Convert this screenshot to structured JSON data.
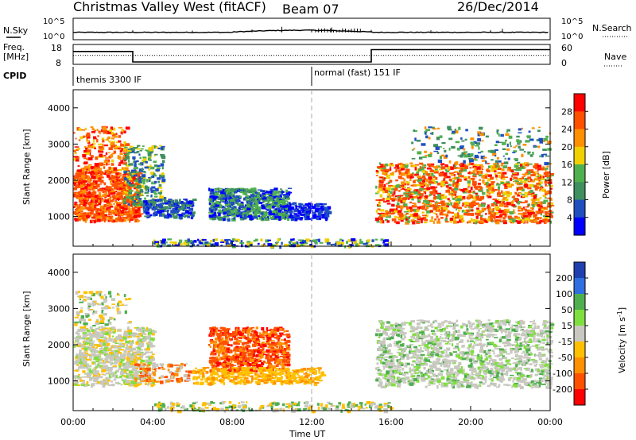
{
  "header": {
    "title": "Christmas Valley West (fitACF)",
    "beam": "Beam 07",
    "date": "26/Dec/2014"
  },
  "top_panels": {
    "nsky_label": "N.Sky",
    "nsky_tick_top": "10^5",
    "nsky_tick_bottom": "10^0",
    "nsearch_label": "N.Search",
    "freq_label_1": "Freq.",
    "freq_label_2": "[MHz]",
    "freq_tick_top": "18",
    "freq_tick_bottom": "8",
    "nave_label": "Nave",
    "nave_tick_top": "60",
    "nave_tick_bottom": "0",
    "cpid_label": "CPID",
    "cpid_1": "themis 3300 IF",
    "cpid_2": "normal (fast) 151 IF"
  },
  "colors": {
    "power": [
      "#0000ff",
      "#1f4fbf",
      "#3f8f5f",
      "#4fb04f",
      "#f0d000",
      "#ff9000",
      "#ff5000",
      "#ff0000"
    ],
    "velocity": [
      "#2040b0",
      "#2f6fe0",
      "#4faf4f",
      "#7fdf3f",
      "#c8c8c0",
      "#ffc000",
      "#ff9000",
      "#ff5000",
      "#ff0000"
    ]
  },
  "chart_data": [
    {
      "type": "line",
      "name": "N.Sky / N.Search",
      "x_unit": "hours UT",
      "x": [
        0,
        3,
        6,
        9,
        10.5,
        12,
        13,
        14,
        15,
        18,
        21,
        21.6,
        24
      ],
      "y": [
        1.2,
        1.2,
        1.1,
        1.4,
        2.2,
        1.5,
        2.0,
        1.6,
        1.3,
        1.2,
        1.2,
        1.6,
        1.2
      ],
      "y_ticks": [
        "10^0",
        "10^5"
      ]
    },
    {
      "type": "line",
      "name": "Frequency / Nave",
      "x_unit": "hours UT",
      "freq_x": [
        0,
        3,
        3,
        15,
        15,
        24
      ],
      "freq_y": [
        14.5,
        14.5,
        9.2,
        9.2,
        15.4,
        15.4
      ],
      "freq_ylim": [
        8,
        18
      ],
      "nave_ylim": [
        0,
        60
      ]
    },
    {
      "type": "heatmap",
      "title": "Power",
      "ylabel": "Slant Range [km]",
      "colorbar_label": "Power [dB]",
      "colorbar_ticks": [
        4,
        8,
        12,
        16,
        20,
        24,
        28
      ],
      "y_ticks": [
        1000,
        2000,
        3000,
        4000
      ],
      "ylim": [
        180,
        4500
      ]
    },
    {
      "type": "heatmap",
      "title": "Velocity",
      "ylabel": "Slant Range [km]",
      "colorbar_label": "Velocity [m s^-1]",
      "colorbar_ticks": [
        200,
        100,
        50,
        15,
        -15,
        -50,
        -100,
        -200
      ],
      "y_ticks": [
        1000,
        2000,
        3000,
        4000
      ],
      "ylim": [
        180,
        4500
      ]
    }
  ],
  "x_axis": {
    "label": "Time UT",
    "ticks": [
      "00:00",
      "04:00",
      "08:00",
      "12:00",
      "16:00",
      "20:00",
      "00:00"
    ]
  }
}
